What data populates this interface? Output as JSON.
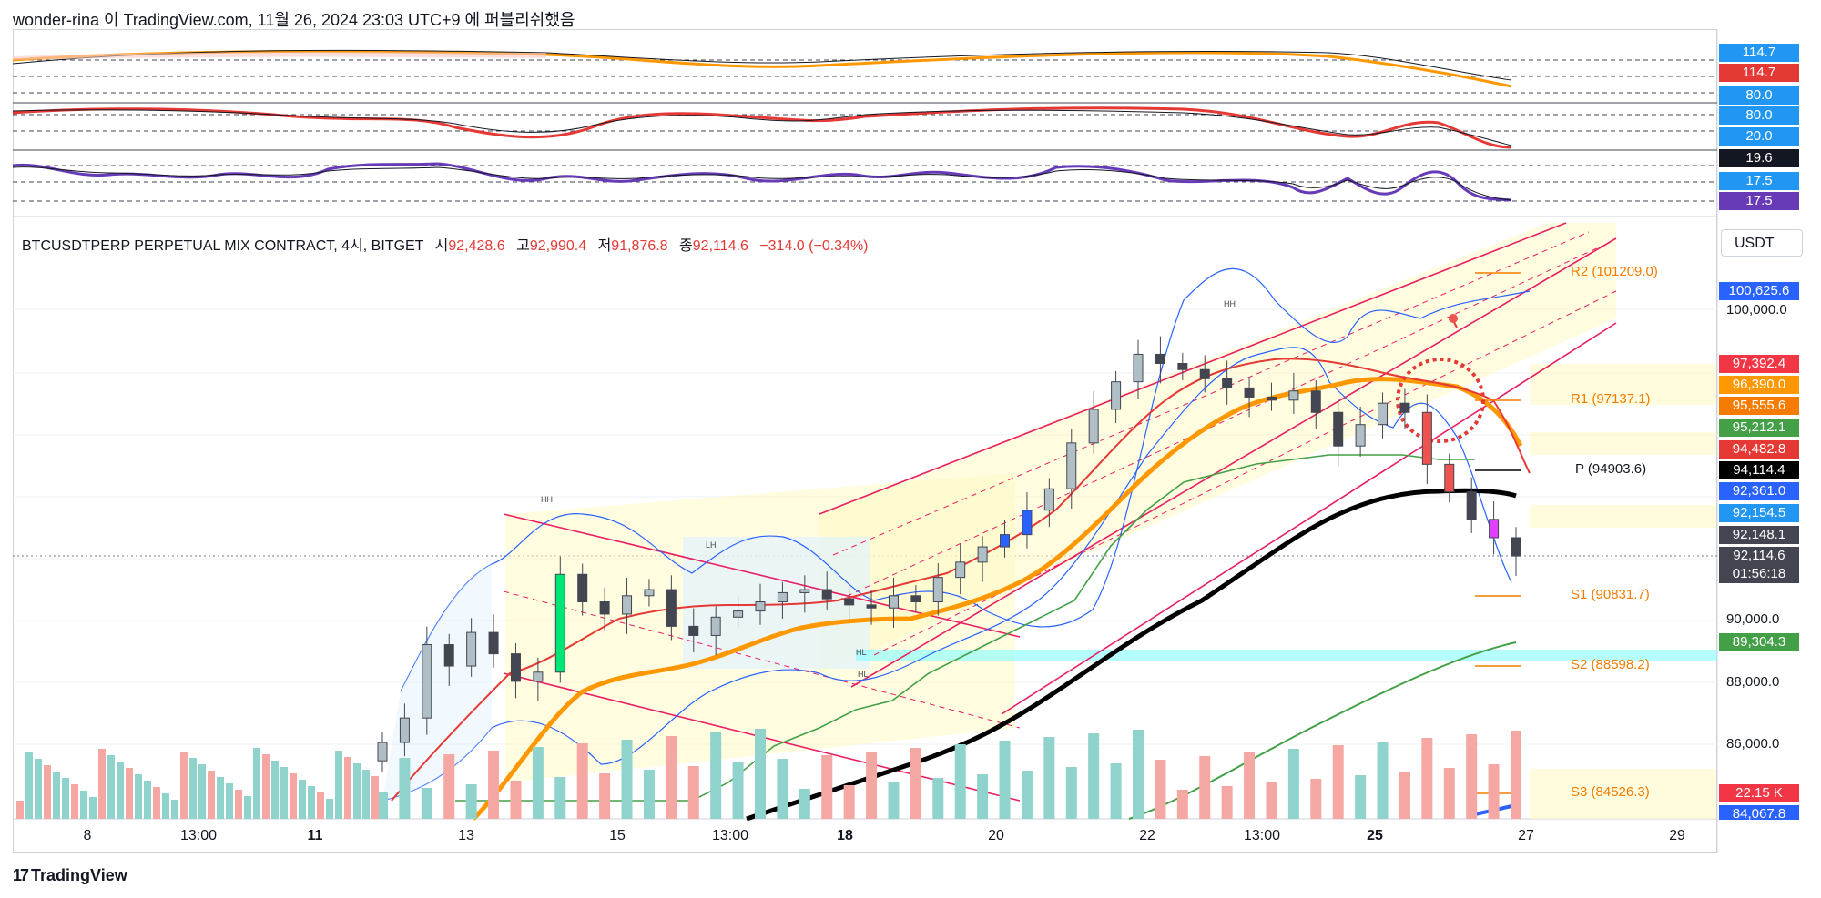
{
  "header": {
    "title": "wonder-rina 이 TradingView.com, 11월 26, 2024 23:03 UTC+9 에 퍼블리쉬했음"
  },
  "symbol": {
    "name": "BTCUSDTPERP PERPETUAL MIX CONTRACT, 4시, BITGET",
    "open_label": "시",
    "open": "92,428.6",
    "high_label": "고",
    "high": "92,990.4",
    "low_label": "저",
    "low": "91,876.8",
    "close_label": "종",
    "close": "92,114.6",
    "change": "−314.0 (−0.34%)"
  },
  "currency": "USDT",
  "footer": {
    "brand": "TradingView"
  },
  "x_axis": {
    "labels": [
      "8",
      "13:00",
      "11",
      "13",
      "15",
      "13:00",
      "18",
      "20",
      "22",
      "13:00",
      "25",
      "27",
      "29"
    ]
  },
  "oscillator_badges": [
    {
      "text": "114.7",
      "color": "#2196f3"
    },
    {
      "text": "114.7",
      "color": "#e53935"
    },
    {
      "text": "80.0",
      "color": "#2196f3"
    },
    {
      "text": "80.0",
      "color": "#2196f3"
    },
    {
      "text": "20.0",
      "color": "#2196f3"
    },
    {
      "text": "19.6",
      "color": "#131722"
    },
    {
      "text": "17.5",
      "color": "#2196f3"
    },
    {
      "text": "17.5",
      "color": "#673ab7"
    }
  ],
  "price_badges": [
    {
      "text": "100,625.6",
      "color": "#2962ff"
    },
    {
      "text": "97,392.4",
      "color": "#f23645"
    },
    {
      "text": "96,390.0",
      "color": "#ff9800"
    },
    {
      "text": "95,555.6",
      "color": "#f57c00"
    },
    {
      "text": "95,212.1",
      "color": "#43a047"
    },
    {
      "text": "94,482.8",
      "color": "#e53935"
    },
    {
      "text": "94,114.4",
      "color": "#000000"
    },
    {
      "text": "92,361.0",
      "color": "#2962ff"
    },
    {
      "text": "92,154.5",
      "color": "#2196f3"
    },
    {
      "text": "92,148.1",
      "color": "#434651"
    },
    {
      "text": "92,114.6",
      "color": "#434651"
    },
    {
      "text": "01:56:18",
      "color": "#434651"
    },
    {
      "text": "89,304.3",
      "color": "#43a047"
    },
    {
      "text": "22.15 K",
      "color": "#f23645"
    },
    {
      "text": "84,067.8",
      "color": "#2962ff"
    }
  ],
  "price_ticks": [
    "100,000.0",
    "90,000.0",
    "88,000.0",
    "86,000.0"
  ],
  "pivots": [
    {
      "label": "R2 (101209.0)"
    },
    {
      "label": "R1 (97137.1)"
    },
    {
      "label": "P (94903.6)"
    },
    {
      "label": "S1 (90831.7)"
    },
    {
      "label": "S2 (88598.2)"
    },
    {
      "label": "S3 (84526.3)"
    }
  ],
  "annotations": [
    "HH",
    "LH",
    "HH",
    "HL",
    "HL"
  ],
  "colors": {
    "up": "#26a69a",
    "down": "#ef5350",
    "ema_orange": "#ff9800",
    "ema_black": "#000000",
    "channel": "#e91e63",
    "bb": "#2962ff",
    "green": "#43a047",
    "pivot": "#f57c00"
  },
  "chart_data": {
    "type": "candlestick",
    "timeframe": "4시",
    "y_range": [
      83500,
      103000
    ],
    "candles_close_approx": [
      86000,
      86800,
      89200,
      88500,
      89600,
      88900,
      88000,
      88300,
      91500,
      90600,
      90200,
      90800,
      91000,
      89800,
      89500,
      90100,
      90300,
      90600,
      90900,
      91000,
      90700,
      90500,
      90400,
      90800,
      90600,
      91400,
      91900,
      92400,
      92800,
      93600,
      94300,
      95800,
      96900,
      97800,
      98700,
      98400,
      98200,
      97900,
      97600,
      97300,
      97200,
      97500,
      96800,
      95700,
      96400,
      97100,
      96800,
      95100,
      94200,
      93300,
      92700,
      92100
    ]
  }
}
